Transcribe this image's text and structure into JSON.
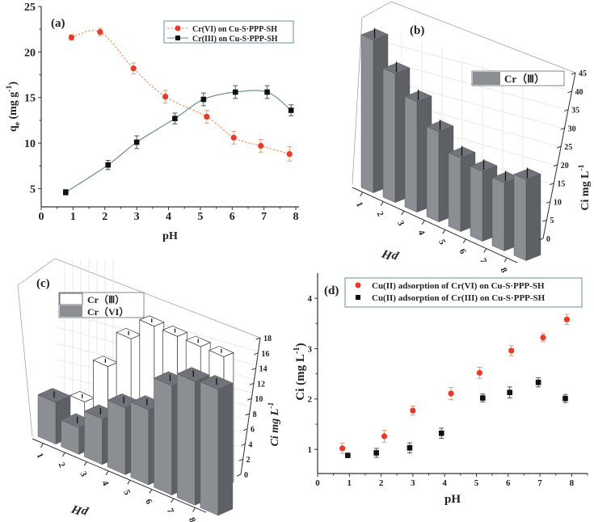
{
  "chart_data": [
    {
      "panel": "(a)",
      "type": "line",
      "xlabel": "pH",
      "ylabel": "q",
      "ylabel_sub": "e",
      "ylabel_unit": " (mg g",
      "ylabel_sup": "-1",
      "ylabel_close": ")",
      "xlim": [
        0,
        8.1
      ],
      "ylim": [
        3,
        25
      ],
      "xticks": [
        "0",
        "1",
        "2",
        "3",
        "4",
        "5",
        "6",
        "7",
        "8"
      ],
      "yticks": [
        "5",
        "10",
        "15",
        "20",
        "25"
      ],
      "legend": "top-right",
      "series": [
        {
          "name": "Cr(VI) on Cu-S·PPP-SH",
          "color": "#e8392a",
          "line_color": "#f0905a",
          "marker": "circle",
          "dashed": true,
          "x": [
            0.95,
            1.85,
            2.9,
            3.9,
            5.2,
            6.05,
            6.9,
            7.8
          ],
          "y": [
            21.6,
            22.2,
            18.2,
            15.1,
            12.9,
            10.6,
            9.7,
            8.8
          ],
          "err": [
            0.3,
            0.4,
            0.6,
            0.7,
            0.7,
            0.7,
            0.7,
            0.8
          ]
        },
        {
          "name": "Cr(III) on Cu-S·PPP-SH",
          "color": "#111111",
          "line_color": "#5e8494",
          "marker": "square",
          "dashed": false,
          "x": [
            0.77,
            2.1,
            3.0,
            4.2,
            5.1,
            6.1,
            7.1,
            7.85
          ],
          "y": [
            4.6,
            7.6,
            10.1,
            12.7,
            14.8,
            15.6,
            15.6,
            13.6
          ],
          "err": [
            0.3,
            0.5,
            0.7,
            0.6,
            0.7,
            0.7,
            0.7,
            0.6
          ]
        }
      ]
    },
    {
      "panel": "(b)",
      "type": "bar3d",
      "xlabel": "pH",
      "ylabel": "Ci  mg L",
      "ylabel_sup": "-1",
      "categories": [
        "1",
        "2",
        "3",
        "4",
        "5",
        "6",
        "7",
        "8"
      ],
      "ylim": [
        0,
        45
      ],
      "yticks": [
        "0",
        "5",
        "10",
        "15",
        "20",
        "25",
        "30",
        "35",
        "40",
        "45"
      ],
      "legend": "top-right",
      "series": [
        {
          "name": "Cr（Ⅲ）",
          "values": [
            41.5,
            35,
            30,
            24.5,
            20,
            19,
            18.5,
            22
          ]
        }
      ]
    },
    {
      "panel": "(c)",
      "type": "bar3d",
      "xlabel": "pH",
      "ylabel": "Ci mg L",
      "ylabel_sup": "-1",
      "categories": [
        "1",
        "2",
        "3",
        "4",
        "5",
        "6",
        "7",
        "8"
      ],
      "ylim": [
        0,
        18
      ],
      "yticks": [
        "0",
        "2",
        "4",
        "6",
        "8",
        "10",
        "12",
        "14",
        "16",
        "18"
      ],
      "legend": "top-left",
      "series": [
        {
          "name": "Cr（Ⅲ）",
          "values": [
            1.5,
            3,
            9,
            14,
            17,
            17,
            17,
            17
          ]
        },
        {
          "name": "Cr（VI）",
          "values": [
            5.5,
            3.5,
            6,
            8.8,
            9.9,
            14.4,
            16.3,
            16.6
          ]
        }
      ]
    },
    {
      "panel": "(d)",
      "type": "scatter",
      "xlabel": "pH",
      "ylabel": "Ci (mg L",
      "ylabel_sup": "-1",
      "ylabel_close": ")",
      "xlim": [
        0,
        8.5
      ],
      "ylim": [
        0.52,
        4.5
      ],
      "xticks": [
        "0",
        "1",
        "2",
        "3",
        "4",
        "5",
        "6",
        "7",
        "8"
      ],
      "yticks": [
        "1",
        "2",
        "3",
        "4"
      ],
      "legend": "top",
      "series": [
        {
          "name": "Cu(II) adsorption of Cr(VI) on Cu-S·PPP-SH",
          "color": "#e8392a",
          "marker": "circle",
          "x": [
            0.78,
            2.1,
            3.0,
            4.2,
            5.1,
            6.1,
            7.1,
            7.85
          ],
          "y": [
            1.02,
            1.26,
            1.77,
            2.11,
            2.52,
            2.96,
            3.22,
            3.58
          ],
          "err": [
            0.1,
            0.12,
            0.09,
            0.12,
            0.11,
            0.1,
            0.08,
            0.1
          ]
        },
        {
          "name": "Cu(II) adsorption of Cr(III) on Cu-S·PPP-SH",
          "color": "#111111",
          "marker": "square",
          "x": [
            0.95,
            1.85,
            2.9,
            3.9,
            5.2,
            6.05,
            6.95,
            7.8
          ],
          "y": [
            0.88,
            0.93,
            1.03,
            1.32,
            2.02,
            2.13,
            2.33,
            2.01
          ],
          "err": [
            0.04,
            0.09,
            0.1,
            0.1,
            0.08,
            0.11,
            0.09,
            0.08
          ]
        }
      ]
    }
  ]
}
